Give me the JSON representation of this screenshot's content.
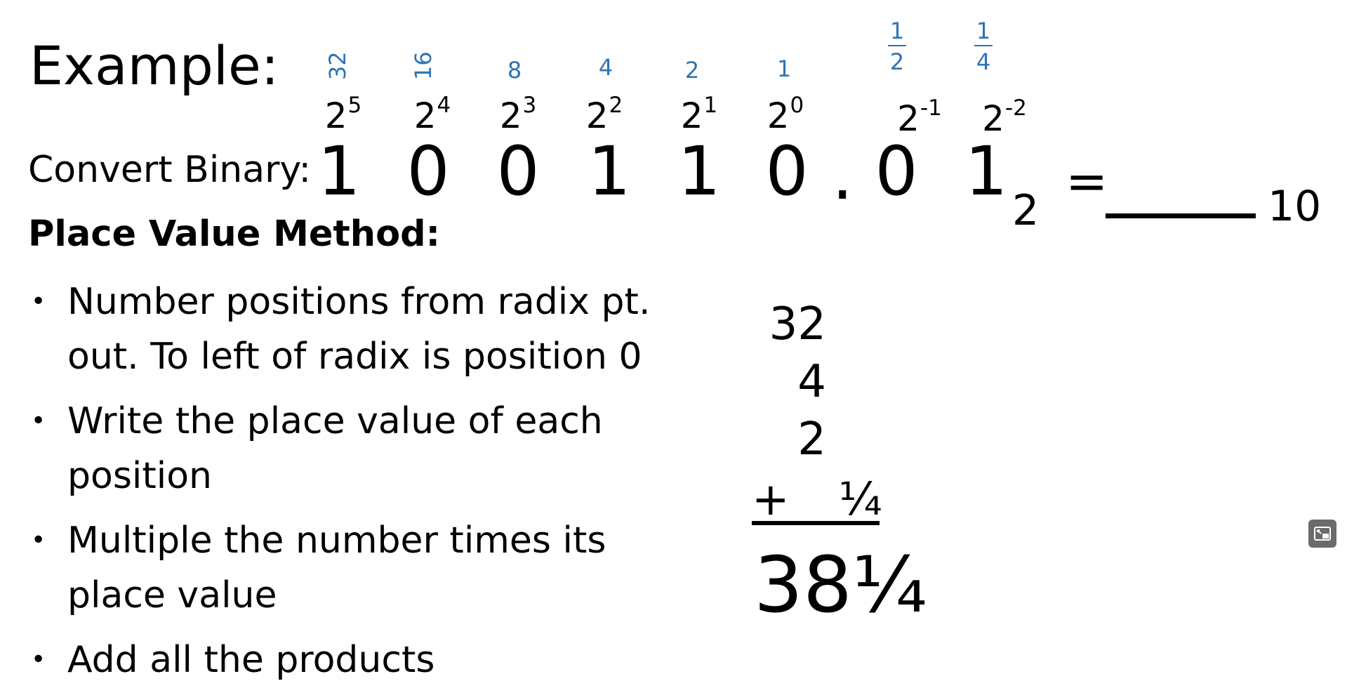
{
  "slide": {
    "title": "Example:",
    "convert_label": "Convert Binary:",
    "place_values": [
      "32",
      "16",
      "8",
      "4",
      "2",
      "1"
    ],
    "place_value_fractions": [
      {
        "num": "1",
        "den": "2"
      },
      {
        "num": "1",
        "den": "4"
      }
    ],
    "power_bases": [
      "2",
      "2",
      "2",
      "2",
      "2",
      "2",
      "2",
      "2"
    ],
    "power_exponents": [
      "5",
      "4",
      "3",
      "2",
      "1",
      "0",
      "-1",
      "-2"
    ],
    "digits": [
      "1",
      "0",
      "0",
      "1",
      "1",
      "0",
      "0",
      "1"
    ],
    "radix_point": ".",
    "base_subscript": "2",
    "equals": "=",
    "result_subscript": "10",
    "method_heading": "Place Value Method:",
    "bullets": [
      [
        "Number positions from radix pt.",
        "out.  To left of radix is position 0"
      ],
      [
        "Write the place value of each",
        "position"
      ],
      [
        "Multiple the number times its",
        "place value"
      ],
      [
        "Add all the products"
      ]
    ],
    "addition": {
      "addends": [
        "32",
        "4",
        "2"
      ],
      "plus": "+",
      "last_addend": "¼",
      "total": "38¼"
    }
  },
  "colors": {
    "text": "#000000",
    "place_value_blue": "#2e74b5",
    "background": "#ffffff",
    "corner_button": "#6b6b6b"
  },
  "icons": {
    "corner_button": "picture-in-picture-icon"
  }
}
